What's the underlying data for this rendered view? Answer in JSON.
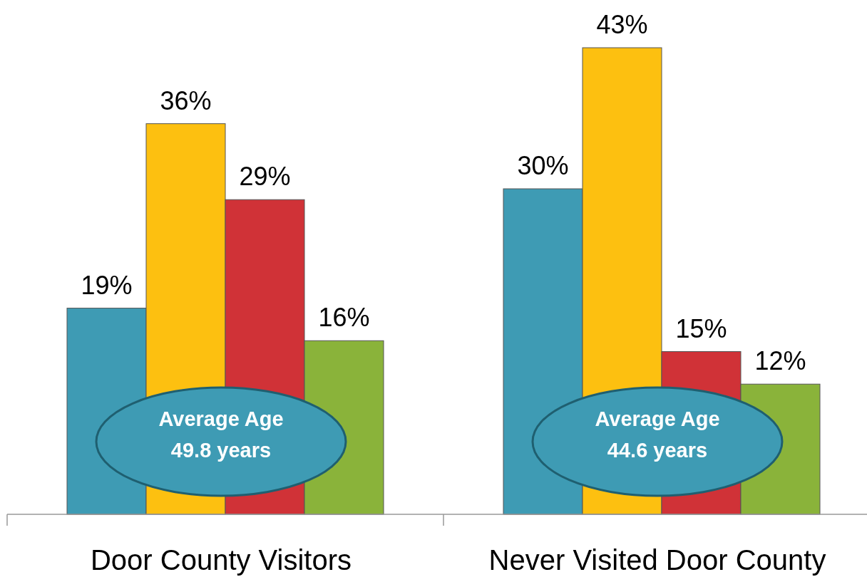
{
  "chart_data": {
    "type": "bar",
    "categories": [
      "Door County Visitors",
      "Never Visited Door County"
    ],
    "series": [
      {
        "color": "#3e9bb4",
        "values": [
          19,
          30
        ],
        "value_labels": [
          "19%",
          "30%"
        ]
      },
      {
        "color": "#fdc010",
        "values": [
          36,
          43
        ],
        "value_labels": [
          "36%",
          "43%"
        ]
      },
      {
        "color": "#d03237",
        "values": [
          29,
          15
        ],
        "value_labels": [
          "29%",
          "15%"
        ]
      },
      {
        "color": "#8ab33a",
        "values": [
          16,
          12
        ],
        "value_labels": [
          "16%",
          "12%"
        ]
      }
    ],
    "annotations": [
      "Average Age\n49.8 years",
      "Average Age\n44.6 years"
    ]
  }
}
